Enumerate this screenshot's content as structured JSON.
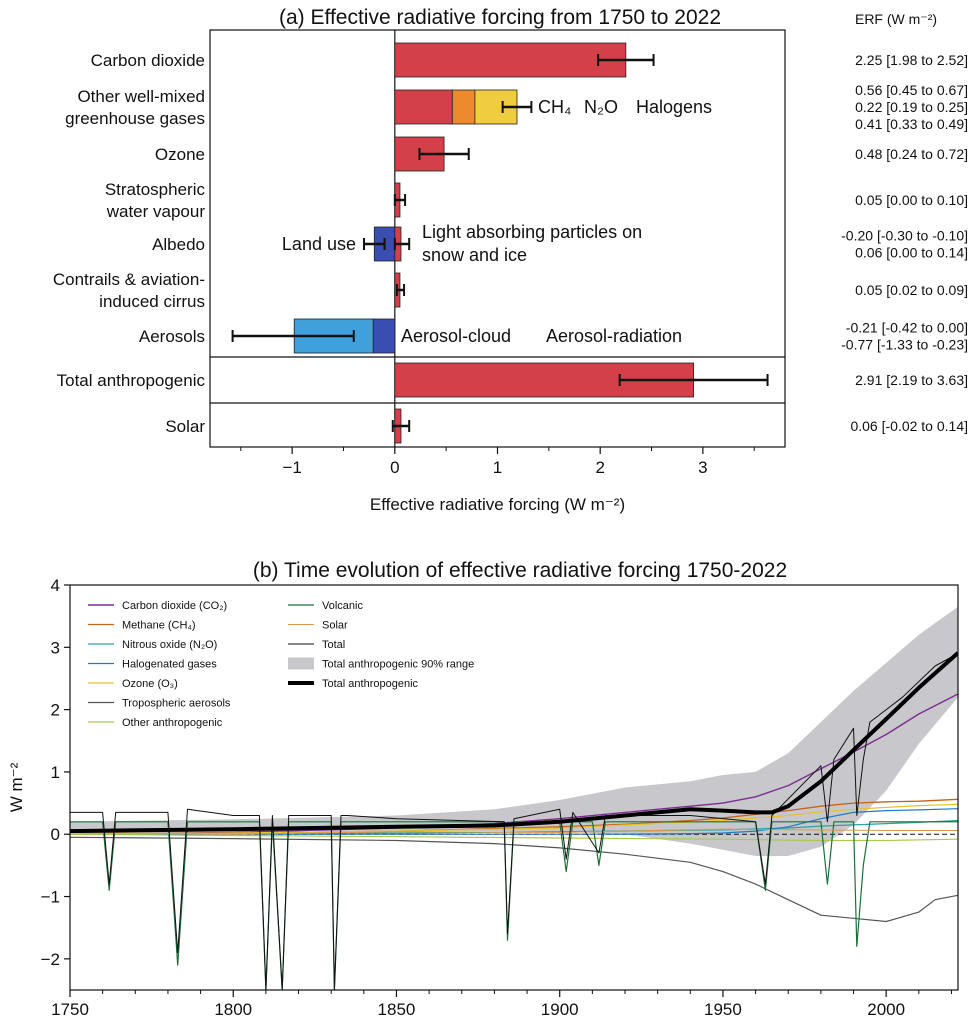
{
  "chart_data": [
    {
      "type": "bar",
      "orientation": "horizontal",
      "title": "(a) Effective radiative forcing from 1750 to 2022",
      "xlabel": "Effective radiative forcing (W m⁻²)",
      "xlim": [
        -1.8,
        3.8
      ],
      "xticks": [
        "−1",
        "0",
        "1",
        "2",
        "3"
      ],
      "erf_header": "ERF (W m⁻²)",
      "colors": {
        "red": "#d4404a",
        "orange": "#ee8a2e",
        "yellow": "#f0cd3e",
        "light_blue": "#3fa0dc",
        "dark_blue": "#3a4db0",
        "black": "#111111"
      },
      "categories": [
        {
          "label": [
            "Carbon dioxide"
          ],
          "segments": [
            {
              "from": 0,
              "to": 2.25,
              "color": "red"
            }
          ],
          "error": {
            "low": 1.98,
            "high": 2.52,
            "center": 2.25
          },
          "erf": [
            {
              "text": "2.25 [1.98 to 2.52]",
              "color": "black"
            }
          ]
        },
        {
          "label": [
            "Other well-mixed",
            "greenhouse gases"
          ],
          "segments": [
            {
              "from": 0,
              "to": 0.56,
              "color": "red"
            },
            {
              "from": 0.56,
              "to": 0.78,
              "color": "orange"
            },
            {
              "from": 0.78,
              "to": 1.19,
              "color": "yellow"
            }
          ],
          "error": {
            "low": 1.05,
            "high": 1.33,
            "center": 1.19
          },
          "erf": [
            {
              "text": "0.56 [0.45 to 0.67]",
              "color": "red"
            },
            {
              "text": "0.22 [0.19 to 0.25]",
              "color": "orange"
            },
            {
              "text": "0.41 [0.33 to 0.49]",
              "color": "yellow"
            }
          ]
        },
        {
          "label": [
            "Ozone"
          ],
          "segments": [
            {
              "from": 0,
              "to": 0.48,
              "color": "red"
            }
          ],
          "error": {
            "low": 0.24,
            "high": 0.72,
            "center": 0.48
          },
          "erf": [
            {
              "text": "0.48 [0.24 to 0.72]",
              "color": "black"
            }
          ]
        },
        {
          "label": [
            "Stratospheric",
            "water vapour"
          ],
          "segments": [
            {
              "from": 0,
              "to": 0.05,
              "color": "red"
            }
          ],
          "error": {
            "low": 0.0,
            "high": 0.1,
            "center": 0.05
          },
          "erf": [
            {
              "text": "0.05 [0.00 to 0.10]",
              "color": "black"
            }
          ]
        },
        {
          "label": [
            "Albedo"
          ],
          "segments": [
            {
              "from": -0.2,
              "to": 0,
              "color": "dark_blue"
            },
            {
              "from": 0,
              "to": 0.06,
              "color": "red"
            }
          ],
          "error": {
            "low": -0.3,
            "high": -0.1,
            "center": -0.2
          },
          "error2": {
            "low": 0.0,
            "high": 0.14,
            "center": 0.06
          },
          "erf": [
            {
              "text": "-0.20 [-0.30 to -0.10]",
              "color": "dark_blue"
            },
            {
              "text": "0.06 [0.00 to 0.14]",
              "color": "red"
            }
          ]
        },
        {
          "label": [
            "Contrails & aviation-",
            "induced cirrus"
          ],
          "segments": [
            {
              "from": 0,
              "to": 0.05,
              "color": "red"
            }
          ],
          "error": {
            "low": 0.02,
            "high": 0.09,
            "center": 0.05
          },
          "erf": [
            {
              "text": "0.05 [0.02 to 0.09]",
              "color": "black"
            }
          ]
        },
        {
          "label": [
            "Aerosols"
          ],
          "segments": [
            {
              "from": -0.98,
              "to": -0.21,
              "color": "light_blue"
            },
            {
              "from": -0.21,
              "to": 0,
              "color": "dark_blue"
            }
          ],
          "error": {
            "low": -1.58,
            "high": -0.4,
            "center": -0.98
          },
          "erf": [
            {
              "text": "-0.21 [-0.42 to 0.00]",
              "color": "dark_blue"
            },
            {
              "text": "-0.77 [-1.33 to -0.23]",
              "color": "light_blue"
            }
          ]
        },
        {
          "label": [
            "Total anthropogenic"
          ],
          "segments": [
            {
              "from": 0,
              "to": 2.91,
              "color": "red"
            }
          ],
          "error": {
            "low": 2.19,
            "high": 3.63,
            "center": 2.91
          },
          "erf": [
            {
              "text": "2.91 [2.19 to 3.63]",
              "color": "black"
            }
          ]
        },
        {
          "label": [
            "Solar"
          ],
          "segments": [
            {
              "from": 0,
              "to": 0.06,
              "color": "red"
            }
          ],
          "error": {
            "low": -0.02,
            "high": 0.14,
            "center": 0.06
          },
          "erf": [
            {
              "text": "0.06 [-0.02 to 0.14]",
              "color": "black"
            }
          ]
        }
      ],
      "annotations": {
        "ch4": "CH₄",
        "n2o": "N₂O",
        "halogens": "Halogens",
        "land_use": "Land use",
        "lap_line1": "Light absorbing particles on",
        "lap_line2": "snow and ice",
        "aerosol_cloud": "Aerosol-cloud",
        "aerosol_radiation": "Aerosol-radiation"
      }
    },
    {
      "type": "line",
      "title": "(b) Time evolution of effective radiative forcing 1750-2022",
      "ylabel": "W m⁻²",
      "xlim": [
        1750,
        2022
      ],
      "ylim": [
        -2.5,
        4
      ],
      "xticks": [
        1750,
        1800,
        1850,
        1900,
        1950,
        2000
      ],
      "yticks": [
        -2,
        -1,
        0,
        1,
        2,
        3,
        4
      ],
      "legend": {
        "placement": "top-left"
      },
      "range_band": {
        "name": "Total anthropogenic 90% range",
        "color": "#c8c8cc",
        "x": [
          1750,
          1800,
          1850,
          1880,
          1900,
          1920,
          1940,
          1950,
          1960,
          1970,
          1980,
          1990,
          2000,
          2010,
          2022
        ],
        "low": [
          0.02,
          0.04,
          0.06,
          0.05,
          0.04,
          0.0,
          -0.15,
          -0.25,
          -0.35,
          -0.35,
          -0.2,
          0.15,
          0.7,
          1.45,
          2.2
        ],
        "high": [
          0.2,
          0.24,
          0.3,
          0.4,
          0.55,
          0.75,
          0.85,
          0.95,
          1.0,
          1.3,
          1.8,
          2.3,
          2.75,
          3.2,
          3.65
        ]
      },
      "series": [
        {
          "name": "Carbon dioxide (CO₂)",
          "color": "#7b2d8e",
          "width": 1.4,
          "x": [
            1750,
            1800,
            1850,
            1880,
            1900,
            1920,
            1940,
            1950,
            1960,
            1970,
            1980,
            1990,
            2000,
            2010,
            2022
          ],
          "y": [
            0.0,
            0.03,
            0.1,
            0.17,
            0.25,
            0.35,
            0.45,
            0.5,
            0.6,
            0.78,
            1.05,
            1.32,
            1.6,
            1.93,
            2.25
          ]
        },
        {
          "name": "Methane (CH₄)",
          "color": "#c0641a",
          "width": 1.3,
          "x": [
            1750,
            1800,
            1850,
            1900,
            1920,
            1940,
            1950,
            1960,
            1970,
            1980,
            1990,
            2000,
            2010,
            2022
          ],
          "y": [
            0.0,
            0.02,
            0.05,
            0.12,
            0.16,
            0.22,
            0.26,
            0.32,
            0.38,
            0.45,
            0.5,
            0.52,
            0.53,
            0.56
          ]
        },
        {
          "name": "Nitrous oxide (N₂O)",
          "color": "#2aa39a",
          "width": 1.2,
          "x": [
            1750,
            1800,
            1850,
            1900,
            1950,
            1970,
            1980,
            1990,
            2000,
            2010,
            2022
          ],
          "y": [
            0.0,
            0.01,
            0.02,
            0.04,
            0.07,
            0.1,
            0.13,
            0.15,
            0.17,
            0.19,
            0.22
          ]
        },
        {
          "name": "Halogenated gases",
          "color": "#1e7bc4",
          "width": 1.2,
          "x": [
            1750,
            1920,
            1940,
            1950,
            1960,
            1970,
            1980,
            1990,
            2000,
            2010,
            2022
          ],
          "y": [
            0.0,
            0.0,
            0.01,
            0.02,
            0.05,
            0.12,
            0.25,
            0.35,
            0.38,
            0.39,
            0.41
          ]
        },
        {
          "name": "Ozone (O₃)",
          "color": "#e8c02c",
          "width": 1.2,
          "x": [
            1750,
            1800,
            1850,
            1900,
            1950,
            1970,
            1980,
            1990,
            2000,
            2010,
            2022
          ],
          "y": [
            0.0,
            0.02,
            0.05,
            0.1,
            0.22,
            0.3,
            0.36,
            0.4,
            0.43,
            0.46,
            0.48
          ]
        },
        {
          "name": "Tropospheric aerosols",
          "color": "#555555",
          "width": 1.2,
          "x": [
            1750,
            1800,
            1850,
            1880,
            1900,
            1920,
            1940,
            1950,
            1960,
            1970,
            1980,
            1990,
            2000,
            2010,
            2015,
            2022
          ],
          "y": [
            -0.05,
            -0.07,
            -0.1,
            -0.15,
            -0.22,
            -0.32,
            -0.45,
            -0.6,
            -0.8,
            -1.05,
            -1.3,
            -1.35,
            -1.4,
            -1.25,
            -1.05,
            -0.98
          ]
        },
        {
          "name": "Other anthropogenic",
          "color": "#a8c850",
          "width": 1.2,
          "x": [
            1750,
            1800,
            1850,
            1900,
            1950,
            1980,
            2000,
            2022
          ],
          "y": [
            0.0,
            -0.02,
            -0.04,
            -0.06,
            -0.08,
            -0.1,
            -0.1,
            -0.08
          ]
        },
        {
          "name": "Volcanic",
          "color": "#1e6e3a",
          "width": 1.2,
          "x": [
            1750,
            1760,
            1762,
            1764,
            1780,
            1783,
            1786,
            1800,
            1808,
            1810,
            1812,
            1815,
            1817,
            1820,
            1830,
            1831,
            1833,
            1835,
            1837,
            1850,
            1883,
            1884,
            1886,
            1900,
            1902,
            1904,
            1910,
            1912,
            1914,
            1960,
            1963,
            1965,
            1980,
            1982,
            1984,
            1990,
            1991,
            1993,
            1995,
            2022
          ],
          "y": [
            0.2,
            0.2,
            -0.9,
            0.2,
            0.2,
            -2.1,
            0.2,
            0.2,
            0.2,
            -2.5,
            0.2,
            -2.5,
            0.2,
            0.2,
            0.2,
            -2.5,
            0.2,
            0.2,
            0.2,
            0.2,
            0.2,
            -1.7,
            0.2,
            0.2,
            -0.6,
            0.2,
            0.2,
            -0.5,
            0.2,
            0.2,
            -0.9,
            0.2,
            0.2,
            -0.8,
            0.2,
            0.2,
            -1.8,
            -0.5,
            0.2,
            0.2
          ]
        },
        {
          "name": "Solar",
          "color": "#d89a50",
          "width": 1.1,
          "x": [
            1750,
            1800,
            1850,
            1900,
            1950,
            2000,
            2022
          ],
          "y": [
            0.03,
            0.0,
            0.04,
            0.03,
            0.08,
            0.06,
            0.06
          ]
        },
        {
          "name": "Total",
          "color": "#111111",
          "width": 1.0,
          "x": [
            1750,
            1760,
            1762,
            1764,
            1780,
            1783,
            1786,
            1800,
            1808,
            1810,
            1812,
            1815,
            1817,
            1820,
            1830,
            1831,
            1833,
            1835,
            1850,
            1883,
            1884,
            1886,
            1900,
            1902,
            1904,
            1912,
            1914,
            1940,
            1960,
            1963,
            1965,
            1980,
            1982,
            1984,
            1990,
            1991,
            1993,
            1995,
            2005,
            2015,
            2022
          ],
          "y": [
            0.35,
            0.35,
            -0.8,
            0.35,
            0.35,
            -1.9,
            0.4,
            0.3,
            0.3,
            -2.5,
            0.3,
            -2.5,
            0.3,
            0.3,
            0.3,
            -2.5,
            0.3,
            0.3,
            0.25,
            0.2,
            -1.6,
            0.25,
            0.4,
            -0.4,
            0.35,
            -0.3,
            0.3,
            0.3,
            0.2,
            -0.8,
            0.3,
            1.1,
            0.2,
            1.2,
            1.7,
            0.3,
            1.2,
            1.8,
            2.2,
            2.7,
            2.9
          ]
        },
        {
          "name": "Total anthropogenic",
          "color": "#000000",
          "width": 4.0,
          "x": [
            1750,
            1800,
            1850,
            1880,
            1900,
            1920,
            1940,
            1950,
            1960,
            1965,
            1970,
            1980,
            1990,
            2000,
            2010,
            2022
          ],
          "y": [
            0.05,
            0.08,
            0.12,
            0.14,
            0.2,
            0.3,
            0.4,
            0.38,
            0.35,
            0.35,
            0.45,
            0.85,
            1.35,
            1.85,
            2.35,
            2.91
          ]
        }
      ],
      "legend_order": [
        "Carbon dioxide (CO₂)",
        "Methane (CH₄)",
        "Nitrous oxide (N₂O)",
        "Halogenated gases",
        "Ozone (O₃)",
        "Tropospheric aerosols",
        "Other anthropogenic",
        "Volcanic",
        "Solar",
        "Total",
        "Total anthropogenic 90% range",
        "Total anthropogenic"
      ]
    }
  ]
}
